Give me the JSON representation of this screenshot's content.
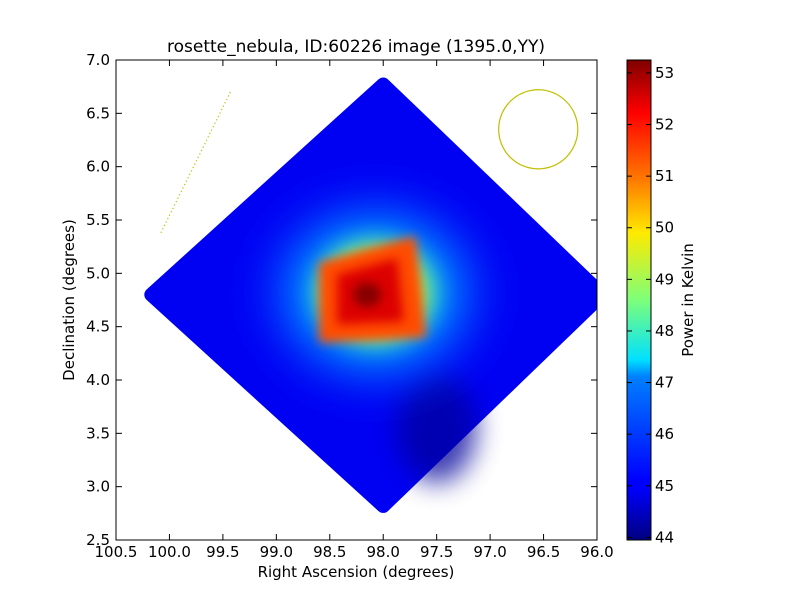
{
  "chart_data": {
    "type": "heatmap",
    "title": "rosette_nebula, ID:60226 image (1395.0,YY)",
    "xlabel": "Right Ascension (degrees)",
    "ylabel": "Declination (degrees)",
    "xlim": [
      100.5,
      96.0
    ],
    "ylim": [
      2.5,
      7.0
    ],
    "x_ticks": [
      "100.5",
      "100.0",
      "99.5",
      "99.0",
      "98.5",
      "98.0",
      "97.5",
      "97.0",
      "96.5",
      "96.0"
    ],
    "x_tick_values": [
      100.5,
      100.0,
      99.5,
      99.0,
      98.5,
      98.0,
      97.5,
      97.0,
      96.5,
      96.0
    ],
    "y_ticks": [
      "2.5",
      "3.0",
      "3.5",
      "4.0",
      "4.5",
      "5.0",
      "5.5",
      "6.0",
      "6.5",
      "7.0"
    ],
    "y_tick_values": [
      2.5,
      3.0,
      3.5,
      4.0,
      4.5,
      5.0,
      5.5,
      6.0,
      6.5,
      7.0
    ],
    "colormap": "jet",
    "colorbar": {
      "label": "Power in Kelvin",
      "range": [
        43.95,
        53.25
      ],
      "ticks": [
        "44",
        "45",
        "46",
        "47",
        "48",
        "49",
        "50",
        "51",
        "52",
        "53"
      ],
      "tick_values": [
        44,
        45,
        46,
        47,
        48,
        49,
        50,
        51,
        52,
        53
      ]
    },
    "map": {
      "footprint_diamond": {
        "top": [
          98.0,
          6.77
        ],
        "left": [
          100.17,
          4.8
        ],
        "bottom": [
          98.0,
          2.82
        ],
        "right": [
          95.95,
          4.8
        ]
      },
      "background_level": 45.0,
      "peak": {
        "ra": 98.15,
        "dec": 4.8,
        "value": 53.2
      },
      "bright_region_corners": [
        [
          98.6,
          5.1
        ],
        [
          97.7,
          5.35
        ],
        [
          97.6,
          4.4
        ],
        [
          98.6,
          4.35
        ]
      ],
      "dim_region": {
        "ra": 97.5,
        "dec": 3.55,
        "value": 44.2
      }
    },
    "overlays": {
      "beam_circle": {
        "ra": 96.55,
        "dec": 6.35,
        "radius_deg": 0.37,
        "color": "#bfbf00"
      },
      "dotted_line": {
        "from": [
          100.08,
          5.38
        ],
        "to": [
          99.42,
          6.72
        ],
        "color": "#bfbf00"
      }
    }
  }
}
